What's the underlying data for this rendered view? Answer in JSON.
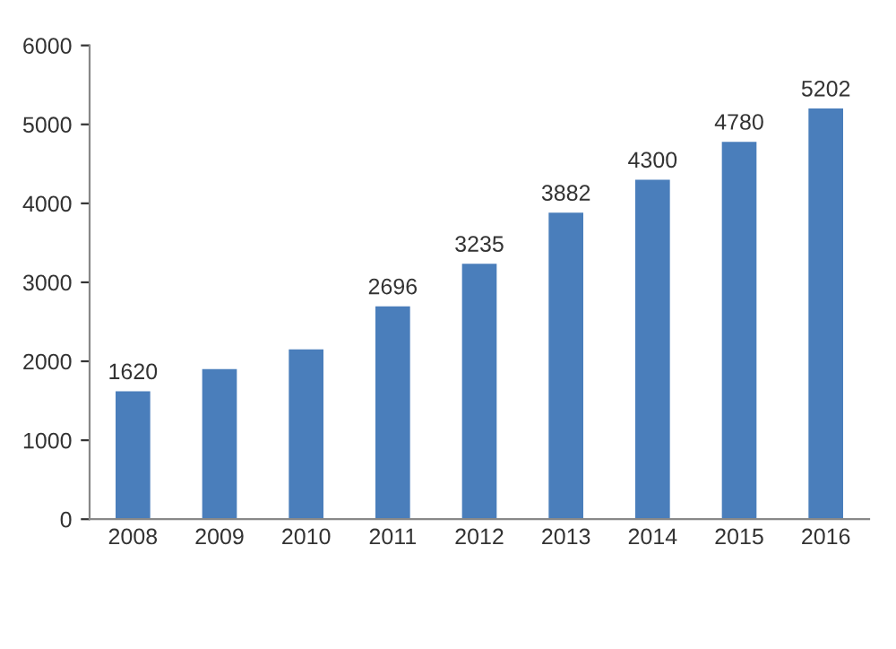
{
  "chart_data": {
    "type": "bar",
    "categories": [
      "2008",
      "2009",
      "2010",
      "2011",
      "2012",
      "2013",
      "2014",
      "2015",
      "2016"
    ],
    "values": [
      1620,
      1900,
      2150,
      2696,
      3235,
      3882,
      4300,
      4780,
      5202
    ],
    "value_labels": [
      "1620",
      null,
      null,
      "2696",
      "3235",
      "3882",
      "4300",
      "4780",
      "5202"
    ],
    "color": "#4a7ebb",
    "ylim": [
      0,
      6000
    ],
    "yticks": [
      0,
      1000,
      2000,
      3000,
      4000,
      5000,
      6000
    ],
    "grid": false
  }
}
